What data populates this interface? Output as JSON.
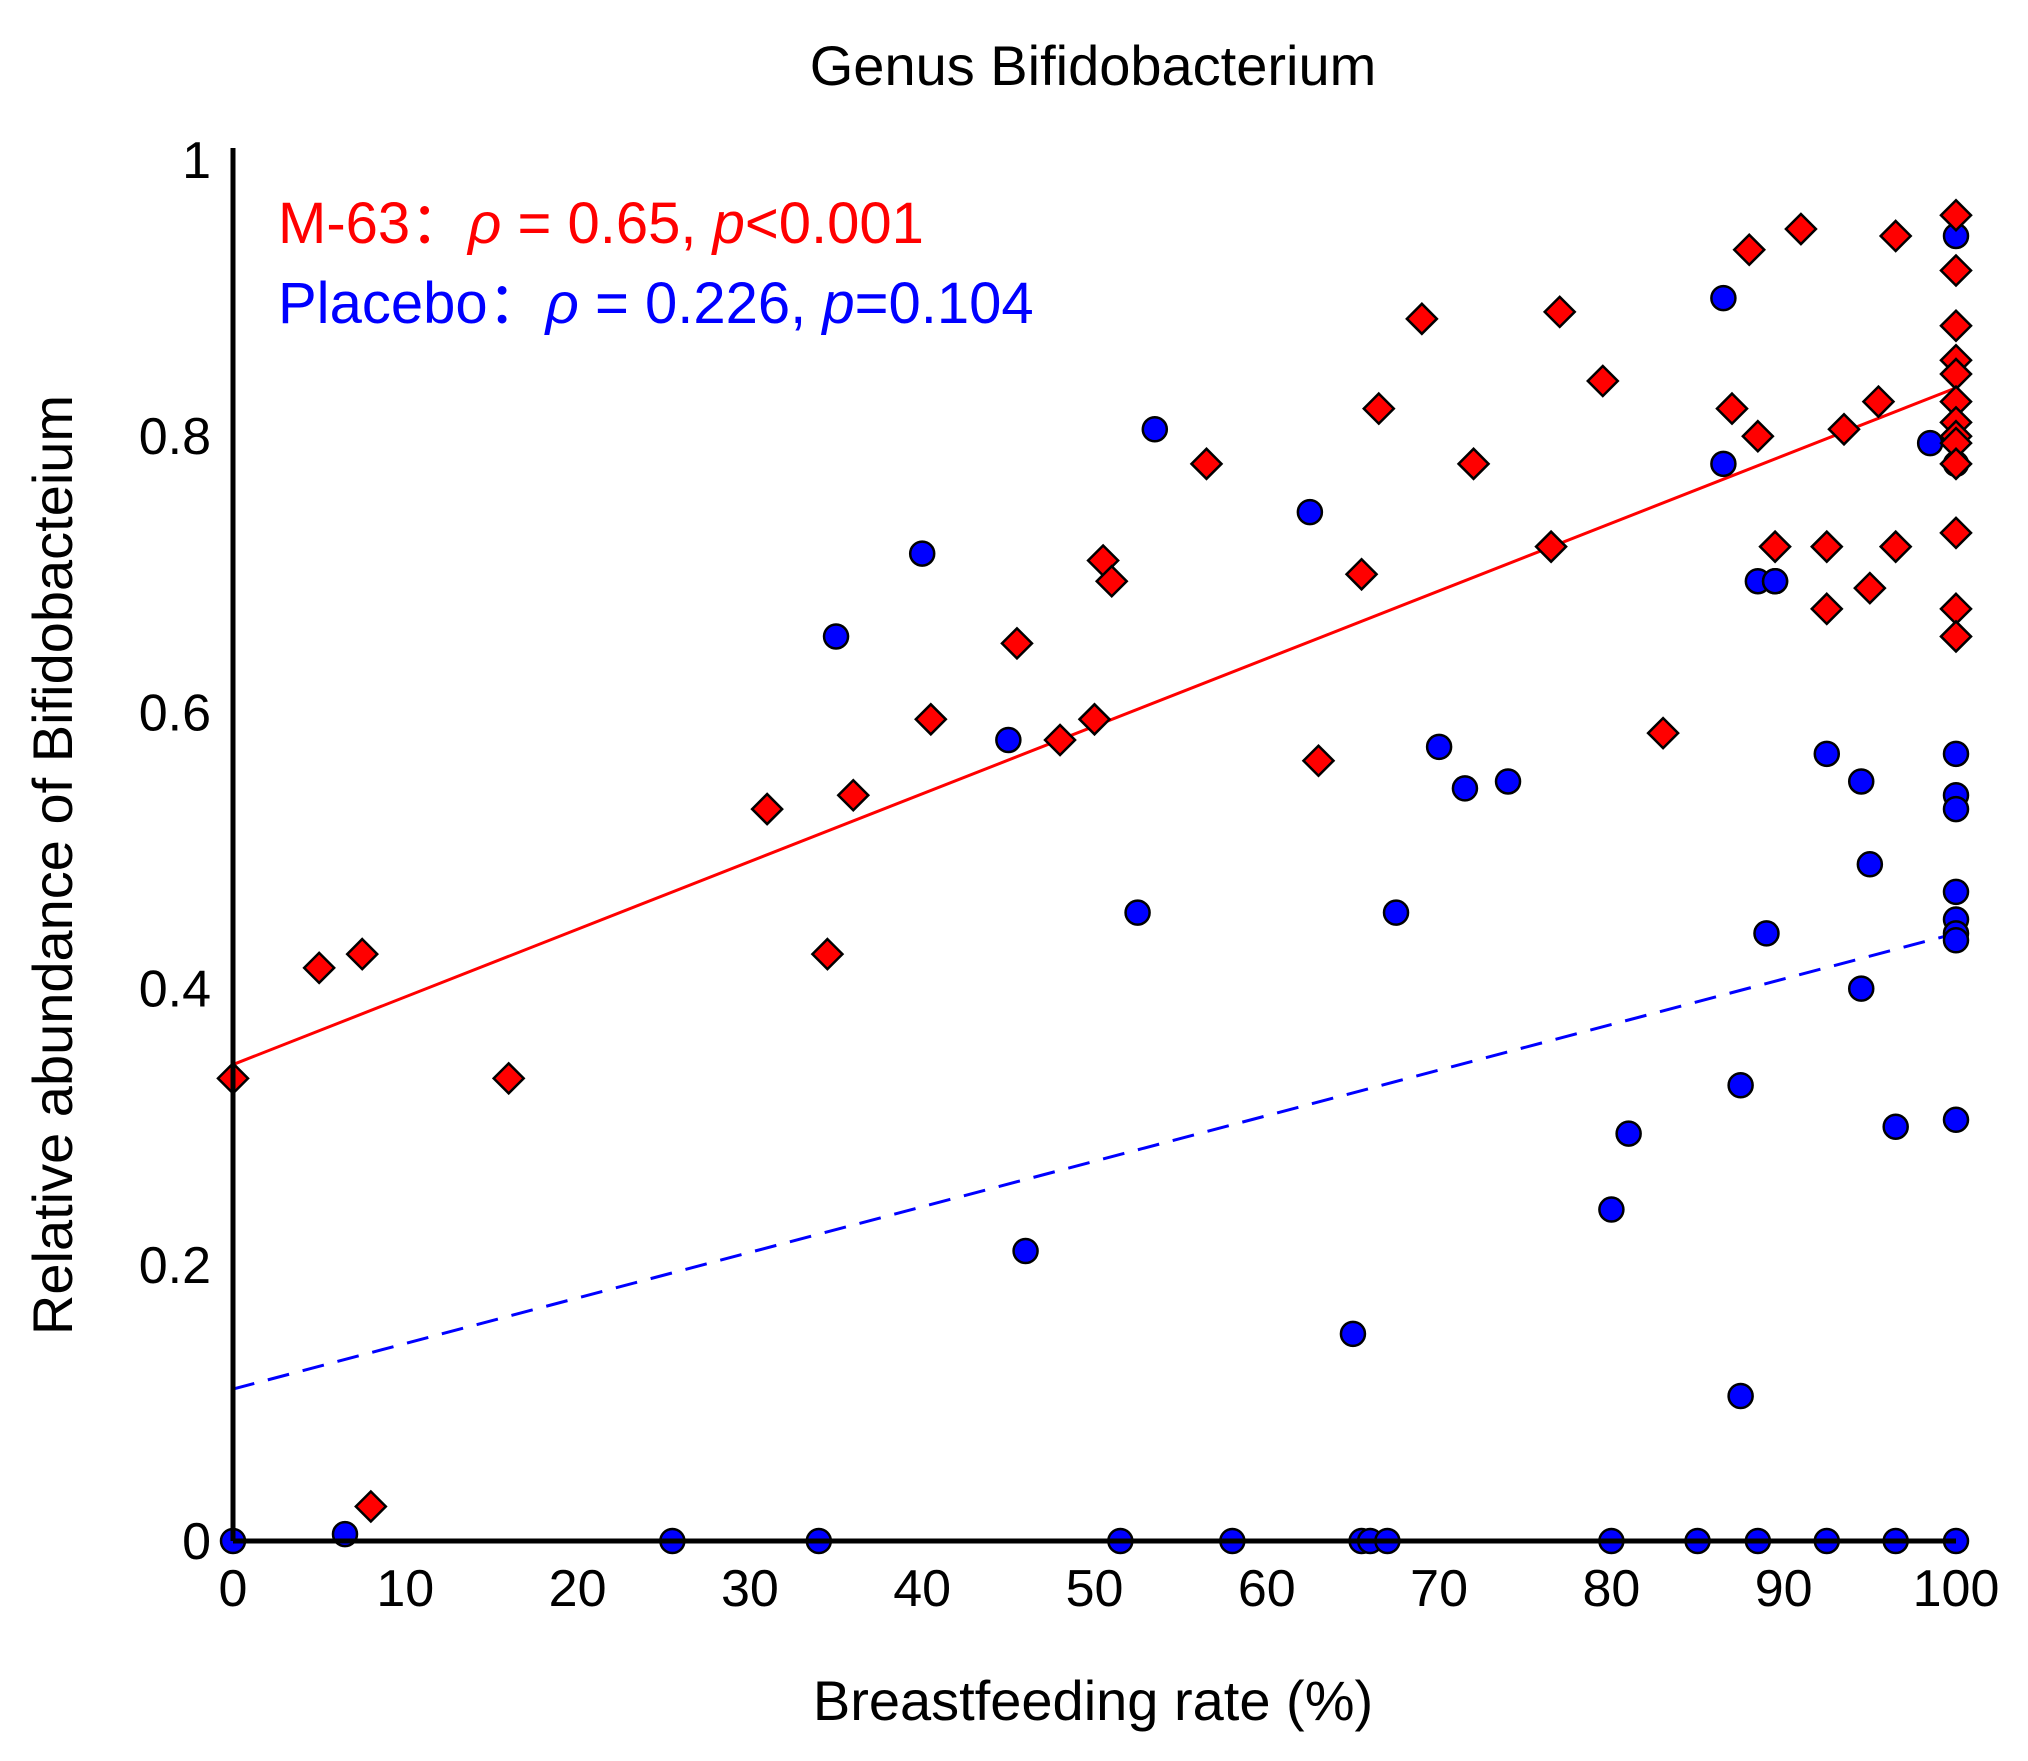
{
  "chart_data": {
    "type": "scatter",
    "title": "Genus Bifidobacterium",
    "xlabel": "Breastfeeding rate (%)",
    "ylabel": "Relative abundance of Bifidobacteium",
    "xlim": [
      0,
      100
    ],
    "ylim": [
      0,
      1
    ],
    "xticks": [
      "0",
      "10",
      "20",
      "30",
      "40",
      "50",
      "60",
      "70",
      "80",
      "90",
      "100"
    ],
    "yticks": [
      "0",
      "0.2",
      "0.4",
      "0.6",
      "0.8",
      "1"
    ],
    "grid": false,
    "annotations": [
      {
        "label": "M-63",
        "sep": "：",
        "rho_symbol": "ρ",
        "rho_text": " = 0.65, ",
        "p_symbol": "p",
        "p_text": "<0.001",
        "color": "#ff0000"
      },
      {
        "label": "Placebo",
        "sep": "：",
        "rho_symbol": "ρ",
        "rho_text": " = 0.226, ",
        "p_symbol": "p",
        "p_text": "=0.104",
        "color": "#0000ff"
      }
    ],
    "series": [
      {
        "name": "M-63",
        "marker": "diamond",
        "color": "#ff0000",
        "trend": {
          "style": "solid",
          "x0": 0,
          "y0": 0.345,
          "x1": 100,
          "y1": 0.835
        },
        "x": [
          0,
          5,
          7.5,
          8,
          16,
          31,
          34.5,
          36,
          40.5,
          45.5,
          48,
          50,
          50.5,
          51,
          56.5,
          63,
          65.5,
          66.5,
          69,
          72,
          76.5,
          77,
          79.5,
          83,
          87,
          88,
          88.5,
          89.5,
          91,
          92.5,
          92.5,
          93.5,
          95,
          95.5,
          96.5,
          96.5,
          100,
          100,
          100,
          100,
          100,
          100,
          100,
          100,
          100,
          100,
          100,
          100,
          100
        ],
        "y": [
          0.335,
          0.415,
          0.425,
          0.025,
          0.335,
          0.53,
          0.425,
          0.54,
          0.595,
          0.65,
          0.58,
          0.595,
          0.71,
          0.695,
          0.78,
          0.565,
          0.7,
          0.82,
          0.885,
          0.78,
          0.72,
          0.89,
          0.84,
          0.585,
          0.82,
          0.935,
          0.8,
          0.72,
          0.95,
          0.72,
          0.675,
          0.805,
          0.69,
          0.825,
          0.72,
          0.945,
          0.96,
          0.92,
          0.88,
          0.855,
          0.845,
          0.825,
          0.81,
          0.8,
          0.795,
          0.78,
          0.73,
          0.675,
          0.655
        ]
      },
      {
        "name": "Placebo",
        "marker": "circle",
        "color": "#0000ff",
        "trend": {
          "style": "dashed",
          "x0": 0,
          "y0": 0.11,
          "x1": 100,
          "y1": 0.44
        },
        "x": [
          0,
          6.5,
          25.5,
          34,
          35,
          40,
          45,
          46,
          51.5,
          52.5,
          53.5,
          58,
          62.5,
          65,
          65.5,
          66,
          67,
          67.5,
          70,
          71.5,
          74,
          80,
          80,
          81,
          85,
          86.5,
          86.5,
          87.5,
          87.5,
          88.5,
          88.5,
          89,
          89.5,
          89.5,
          92.5,
          92.5,
          94.5,
          94.5,
          95,
          96.5,
          96.5,
          98.5,
          100,
          100,
          100,
          100,
          100,
          100,
          100,
          100,
          100,
          100,
          100
        ],
        "y": [
          0,
          0.005,
          0,
          0,
          0.655,
          0.715,
          0.58,
          0.21,
          0,
          0.455,
          0.805,
          0,
          0.745,
          0.15,
          0,
          0,
          0,
          0.455,
          0.575,
          0.545,
          0.55,
          0.24,
          0,
          0.295,
          0,
          0.9,
          0.78,
          0.33,
          0.105,
          0,
          0.695,
          0.44,
          0.695,
          0.695,
          0.57,
          0,
          0.4,
          0.55,
          0.49,
          0.3,
          0,
          0.795,
          0.945,
          0.78,
          0.57,
          0.54,
          0.53,
          0.47,
          0.45,
          0.44,
          0.435,
          0.305,
          0
        ]
      }
    ]
  }
}
